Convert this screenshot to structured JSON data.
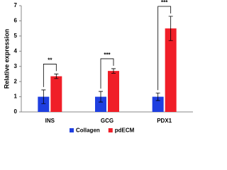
{
  "chart_data": {
    "type": "bar",
    "y_label": "Relative expression",
    "categories": [
      "INS",
      "GCG",
      "PDX1"
    ],
    "series": [
      {
        "name": "Collagen",
        "color": "#1f3fe0",
        "values": [
          1.0,
          1.0,
          1.0
        ],
        "errors": [
          0.45,
          0.35,
          0.25
        ]
      },
      {
        "name": "pdECM",
        "color": "#f01e28",
        "values": [
          2.35,
          2.7,
          5.5
        ],
        "errors": [
          0.15,
          0.15,
          0.8
        ]
      }
    ],
    "annotations": [
      "**",
      "***",
      "***"
    ],
    "ylim": [
      0,
      7
    ],
    "yticks": [
      0,
      1,
      2,
      3,
      4,
      5,
      6,
      7
    ],
    "legend": "bottom"
  }
}
